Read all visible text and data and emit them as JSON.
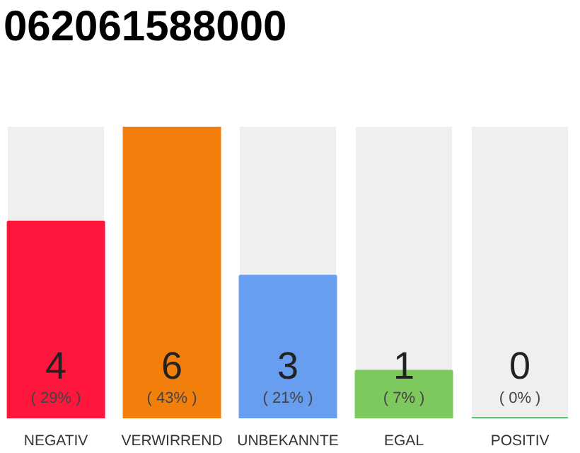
{
  "chart_data": {
    "type": "bar",
    "title": "062061588000",
    "categories": [
      "NEGATIV",
      "VERWIRREND",
      "UNBEKANNTE",
      "EGAL",
      "POSITIV"
    ],
    "values": [
      29,
      43,
      21,
      7,
      0
    ],
    "colors": [
      "#ff163c",
      "#f27f0c",
      "#679ef0",
      "#7dc95e",
      "#2aa84a"
    ],
    "value_labels": [
      "( 29% )",
      "( 43% )",
      "( 21% )",
      "( 7% )",
      "( 0% )"
    ],
    "annotations": [
      {
        "text": "4",
        "x": "NEGATIV",
        "y": 0
      },
      {
        "text": "6",
        "x": "VERWIRREND",
        "y": 0
      },
      {
        "text": "3",
        "x": "UNBEKANNTE",
        "y": 0
      },
      {
        "text": "1",
        "x": "EGAL",
        "y": 0
      },
      {
        "text": "0",
        "x": "POSITIV",
        "y": 0
      }
    ],
    "tick_labels": "x"
  }
}
